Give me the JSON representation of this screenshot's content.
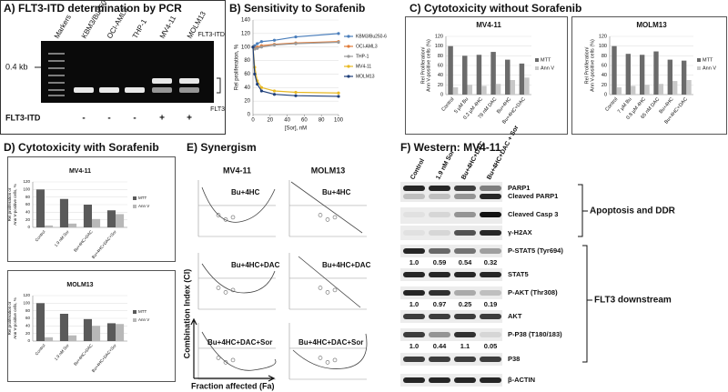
{
  "panels": {
    "A": "A) FLT3-ITD determination by PCR",
    "B": "B) Sensitivity to Sorafenib",
    "C": "C) Cytotoxicity without Sorafenib",
    "D": "D) Cytotoxicity with Sorafenib",
    "E": "E) Synergism",
    "F": "F) Western: MV4-11"
  },
  "gel": {
    "lanes": [
      "Markers",
      "KBM3/Bu250⁶",
      "OCI-AML3",
      "THP-1",
      "MV4-11",
      "MOLM13"
    ],
    "size_marker": "0.4 kb",
    "bands": [
      "FLT3-ITD",
      "FLT3"
    ],
    "row_label": "FLT3-ITD",
    "row_values": [
      "-",
      "-",
      "-",
      "+",
      "+"
    ]
  },
  "chart_data": [
    {
      "type": "line",
      "xlabel": "[Sor], nM",
      "ylabel": "Rel proliferation, %",
      "x": [
        0,
        2,
        5,
        10,
        25,
        50,
        100
      ],
      "xlim": [
        0,
        100
      ],
      "xticks": [
        0,
        20,
        40,
        60,
        80,
        100
      ],
      "ylim": [
        0,
        140
      ],
      "yticks": [
        0,
        20,
        40,
        60,
        80,
        100,
        120,
        140
      ],
      "grid": true,
      "series": [
        {
          "name": "KBM3/Bu250-6",
          "color": "#4a7ebb",
          "values": [
            100,
            102,
            105,
            108,
            110,
            115,
            120
          ]
        },
        {
          "name": "OCI-AML3",
          "color": "#e07b39",
          "values": [
            100,
            98,
            100,
            102,
            104,
            106,
            108
          ]
        },
        {
          "name": "THP-1",
          "color": "#9a9a9a",
          "values": [
            100,
            97,
            98,
            100,
            103,
            105,
            107
          ]
        },
        {
          "name": "MV4-11",
          "color": "#e8b923",
          "values": [
            100,
            70,
            50,
            40,
            35,
            33,
            32
          ]
        },
        {
          "name": "MOLM13",
          "color": "#1f3f7a",
          "values": [
            100,
            60,
            45,
            35,
            30,
            28,
            27
          ]
        }
      ]
    },
    {
      "type": "bar",
      "title": "MV4-11",
      "ylabel": [
        "Rel Proliferation/",
        "Ann V-positive cells (%)"
      ],
      "categories": [
        "Control",
        "5 µM Bu",
        "0.2 µM 4HC",
        "78 nM DAC",
        "Bu+4HC",
        "Bu+4HC+DAC"
      ],
      "ylim": [
        0,
        120
      ],
      "yticks": [
        0,
        20,
        40,
        60,
        80,
        100,
        120
      ],
      "grid": true,
      "series": [
        {
          "name": "MTT",
          "color": "#6b6b6b",
          "values": [
            100,
            80,
            82,
            88,
            72,
            64
          ]
        },
        {
          "name": "Ann V",
          "color": "#c8c8c8",
          "values": [
            15,
            20,
            18,
            22,
            30,
            35
          ]
        }
      ]
    },
    {
      "type": "bar",
      "title": "MOLM13",
      "ylabel": [
        "Rel Proliferation/",
        "Ann V-positive cells (%)"
      ],
      "categories": [
        "Control",
        "7 µM Bu",
        "0.8 µM 4HC",
        "65 nM DAC",
        "Bu+4HC",
        "Bu+4HC+DAC"
      ],
      "ylim": [
        0,
        120
      ],
      "yticks": [
        0,
        20,
        40,
        60,
        80,
        100,
        120
      ],
      "grid": true,
      "series": [
        {
          "name": "MTT",
          "color": "#6b6b6b",
          "values": [
            100,
            84,
            82,
            89,
            72,
            70
          ]
        },
        {
          "name": "Ann V",
          "color": "#c8c8c8",
          "values": [
            15,
            18,
            20,
            22,
            28,
            30
          ]
        }
      ]
    },
    {
      "type": "bar",
      "title": "MV4-11",
      "ylabel": [
        "Rel proliferation or",
        "Ann V-positive cells, %"
      ],
      "categories": [
        "Control",
        "1.9 nM Sor",
        "Bu+4HC+DAC",
        "Bu+4HC+DAC+Sor"
      ],
      "ylim": [
        0,
        120
      ],
      "yticks": [
        0,
        20,
        40,
        60,
        80,
        100,
        120
      ],
      "grid": true,
      "series": [
        {
          "name": "MTT",
          "color": "#5a5a5a",
          "values": [
            100,
            75,
            60,
            45
          ]
        },
        {
          "name": "Ann V",
          "color": "#b8b8b8",
          "values": [
            5,
            10,
            22,
            35
          ]
        }
      ]
    },
    {
      "type": "bar",
      "title": "MOLM13",
      "ylabel": [
        "Rel proliferation or",
        "Ann V-positive cells, %"
      ],
      "categories": [
        "Control",
        "1.9 nM Sor",
        "Bu+4HC+DAC",
        "Bu+4HC+DAC+Sor"
      ],
      "ylim": [
        0,
        120
      ],
      "yticks": [
        0,
        20,
        40,
        60,
        80,
        100,
        120
      ],
      "grid": true,
      "series": [
        {
          "name": "MTT",
          "color": "#5a5a5a",
          "values": [
            100,
            72,
            58,
            47
          ]
        },
        {
          "name": "Ann V",
          "color": "#b8b8b8",
          "values": [
            10,
            15,
            40,
            45
          ]
        }
      ]
    }
  ],
  "synergism": {
    "columns": [
      "MV4-11",
      "MOLM13"
    ],
    "rows": [
      "Bu+4HC",
      "Bu+4HC+DAC",
      "Bu+4HC+DAC+Sor"
    ],
    "ylabel": "Combination Index (CI)",
    "xlabel": "Fraction affected (Fa)"
  },
  "western": {
    "lanes": [
      "Control",
      "1.9 nM Sor",
      "Bu+4HC+DAC",
      "Bu+4HC+DAC + Sor"
    ],
    "bands": [
      "PARP1",
      "Cleaved PARP1",
      "Cleaved Casp 3",
      "γ-H2AX",
      "P-STAT5 (Tyr694)",
      "STAT5",
      "P-AKT (Thr308)",
      "AKT",
      "P-P38 (T180/183)",
      "P38",
      "β-ACTIN"
    ],
    "quantification": [
      [
        "1.0",
        "0.59",
        "0.54",
        "0.32"
      ],
      [
        "1.0",
        "0.97",
        "0.25",
        "0.19"
      ],
      [
        "1.0",
        "0.44",
        "1.1",
        "0.05"
      ]
    ],
    "groups": [
      "Apoptosis and DDR",
      "FLT3 downstream"
    ]
  }
}
